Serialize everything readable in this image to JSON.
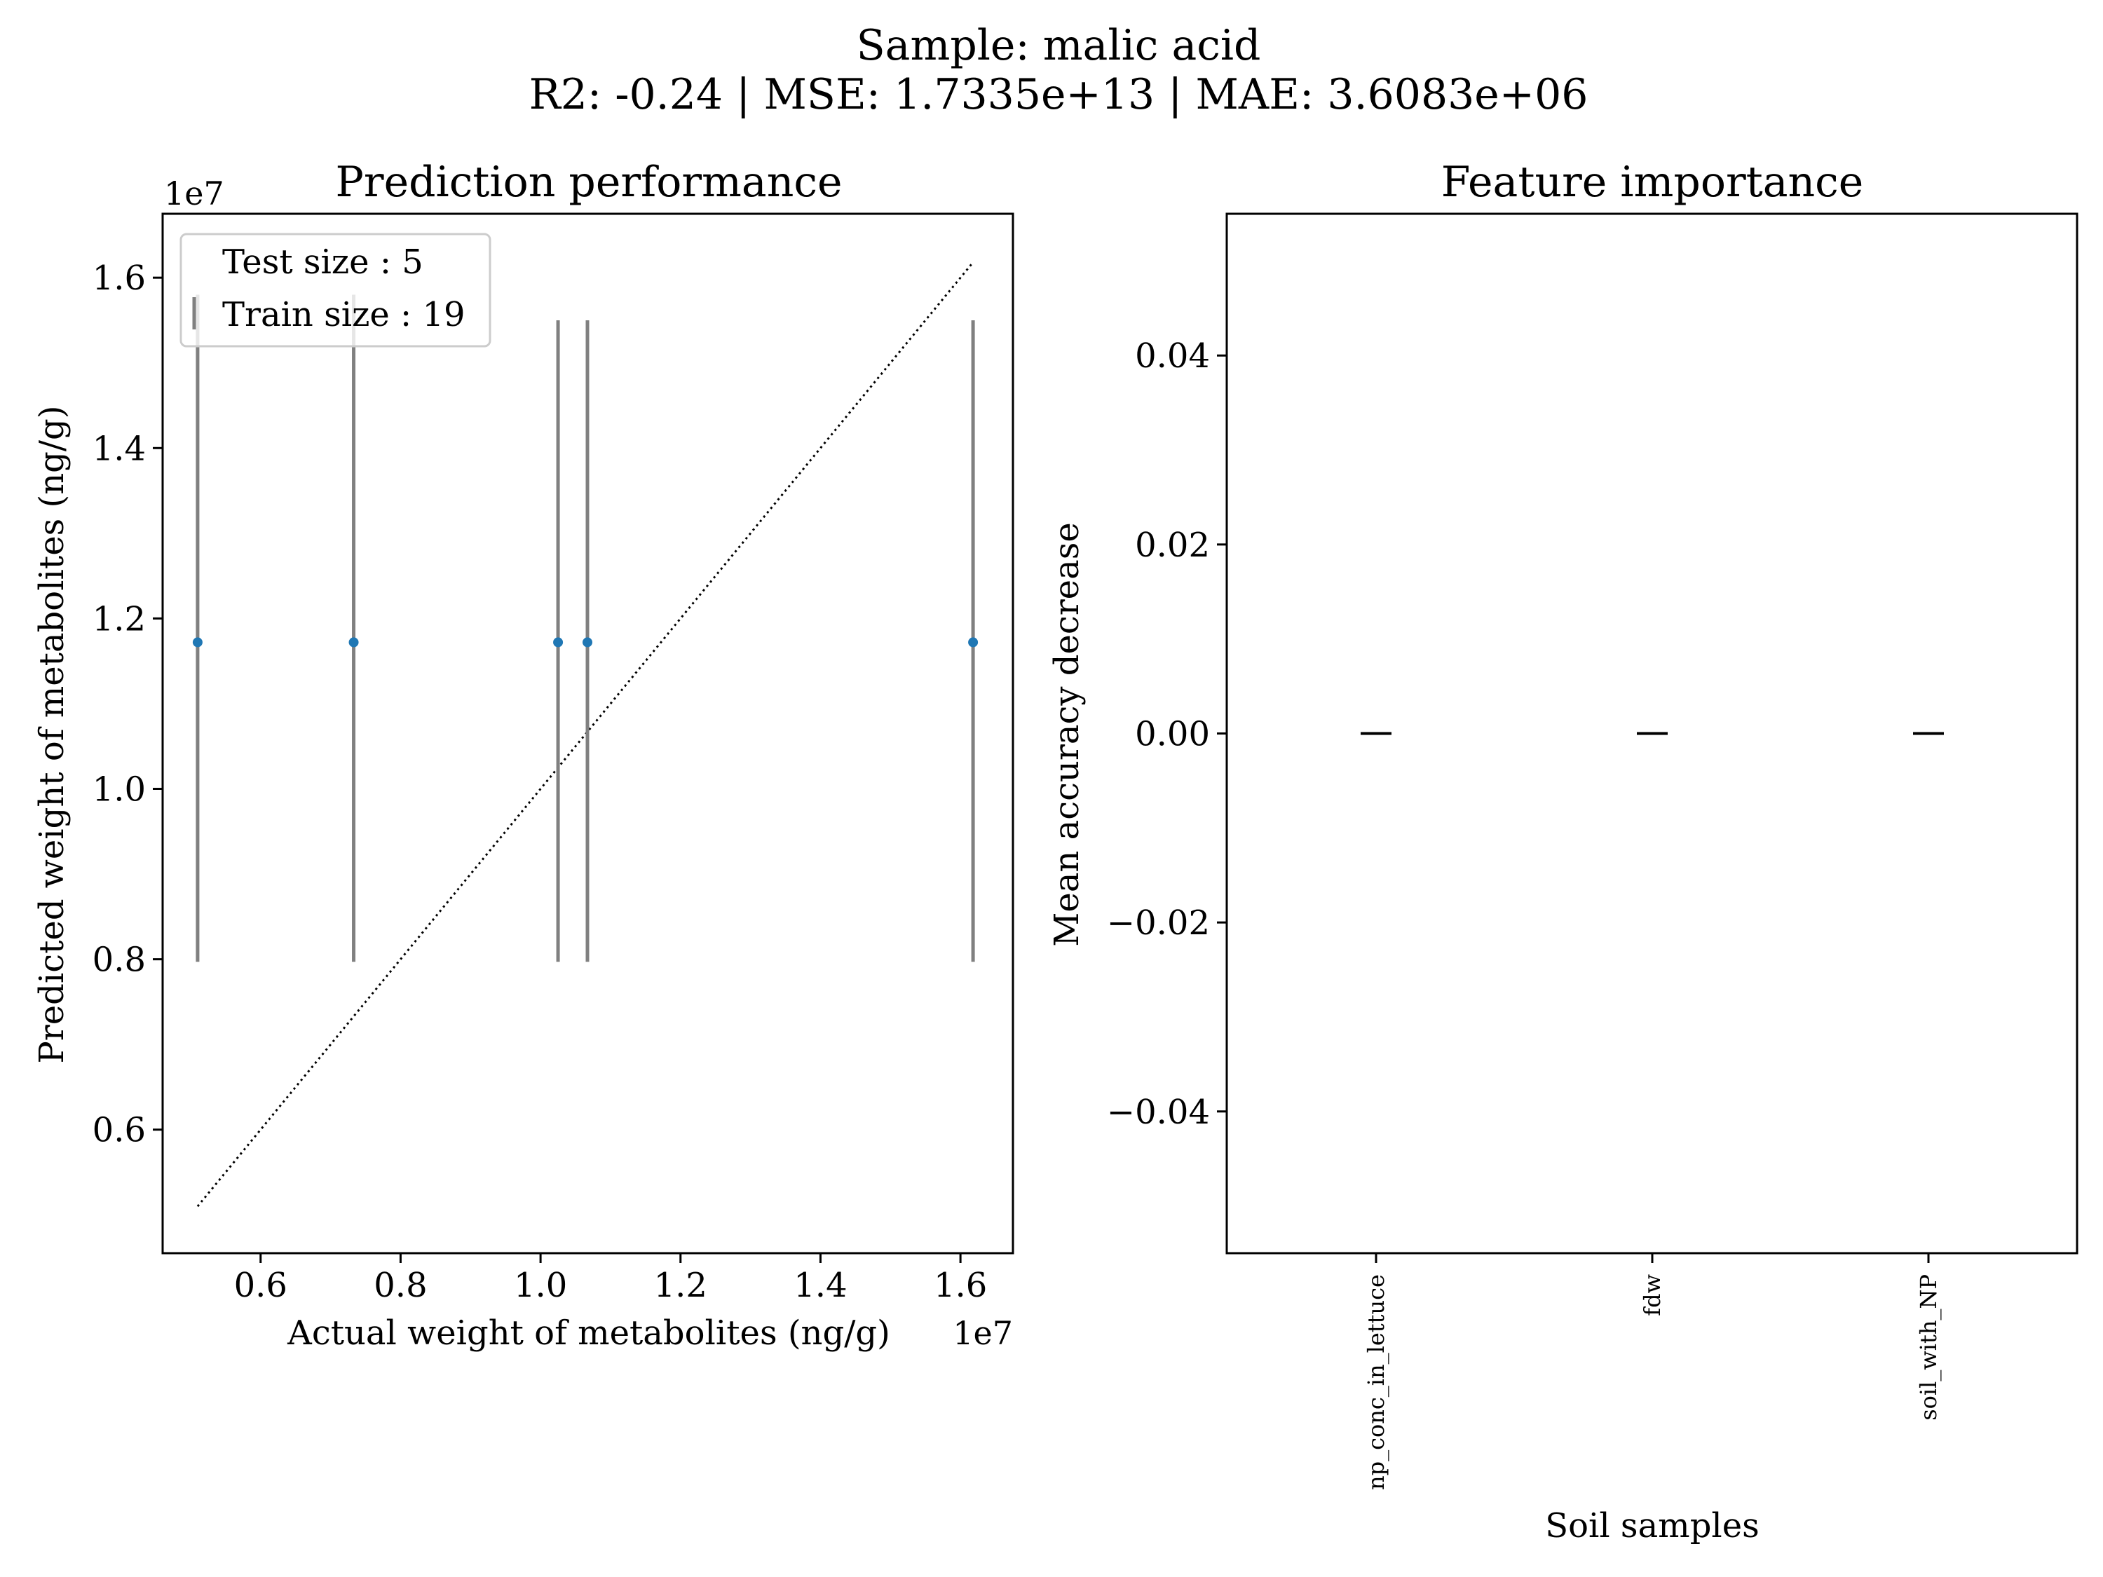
{
  "figure": {
    "title_line1": "Sample: malic acid",
    "title_line2": "R2: -0.24 | MSE: 1.7335e+13 | MAE: 3.6083e+06"
  },
  "chart_data": [
    {
      "type": "scatter",
      "title": "Prediction performance",
      "xlabel": "Actual weight of metabolites (ng/g)",
      "ylabel": "Predicted weight of metabolites (ng/g)",
      "x_offset_label": "1e7",
      "y_offset_label": "1e7",
      "xlim": [
        4600000.0,
        16750000.0
      ],
      "ylim": [
        4550000.0,
        16750000.0
      ],
      "x_ticks": [
        6000000.0,
        8000000.0,
        10000000.0,
        12000000.0,
        14000000.0,
        16000000.0
      ],
      "x_tick_labels": [
        "0.6",
        "0.8",
        "1.0",
        "1.2",
        "1.4",
        "1.6"
      ],
      "y_ticks": [
        6000000.0,
        8000000.0,
        10000000.0,
        12000000.0,
        14000000.0,
        16000000.0
      ],
      "y_tick_labels": [
        "0.6",
        "0.8",
        "1.0",
        "1.2",
        "1.4",
        "1.6"
      ],
      "points": [
        {
          "x": 5100000.0,
          "y": 11720000.0,
          "y_low": 7970000.0,
          "y_high": 15800000.0
        },
        {
          "x": 7330000.0,
          "y": 11720000.0,
          "y_low": 7970000.0,
          "y_high": 15800000.0
        },
        {
          "x": 10250000.0,
          "y": 11720000.0,
          "y_low": 7970000.0,
          "y_high": 15500000.0
        },
        {
          "x": 10670000.0,
          "y": 11720000.0,
          "y_low": 7970000.0,
          "y_high": 15500000.0
        },
        {
          "x": 16180000.0,
          "y": 11720000.0,
          "y_low": 7970000.0,
          "y_high": 15500000.0
        }
      ],
      "reference_line": {
        "x": [
          5100000.0,
          16180000.0
        ],
        "y": [
          5100000.0,
          16180000.0
        ]
      },
      "legend": {
        "placement": "upper-left",
        "entries": [
          "Test size : 5",
          "Train size : 19"
        ]
      },
      "colors": {
        "point": "#1f77b4",
        "errorbar": "#808080",
        "line": "#000000"
      }
    },
    {
      "type": "box",
      "title": "Feature importance",
      "xlabel": "Soil samples",
      "ylabel": "Mean accuracy decrease",
      "categories": [
        "np_conc_in_lettuce",
        "fdw",
        "soil_with_NP"
      ],
      "values": [
        0.0,
        0.0,
        0.0
      ],
      "ylim": [
        -0.055,
        0.055
      ],
      "y_ticks": [
        0.04,
        0.02,
        0.0,
        -0.02,
        -0.04
      ],
      "y_tick_labels": [
        "0.04",
        "0.02",
        "0.00",
        "−0.02",
        "−0.04"
      ]
    }
  ]
}
